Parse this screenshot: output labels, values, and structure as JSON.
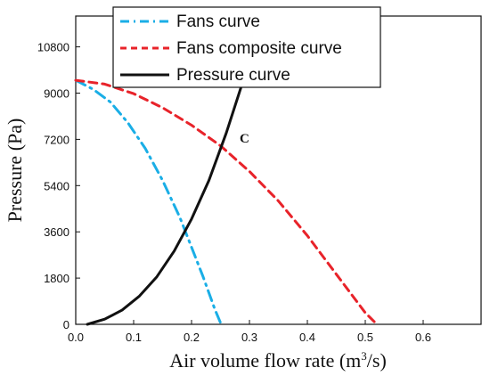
{
  "chart_data": {
    "type": "line",
    "title": "",
    "xlabel": "Air volume flow rate (m",
    "xlabel_sup": "3",
    "xlabel_tail": "/s)",
    "ylabel": "Pressure (Pa)",
    "xlim": [
      0,
      0.7
    ],
    "ylim": [
      0,
      12000
    ],
    "x_ticks": [
      0.0,
      0.1,
      0.2,
      0.3,
      0.4,
      0.5,
      0.6
    ],
    "x_tick_labels": [
      "0.0",
      "0.1",
      "0.2",
      "0.3",
      "0.4",
      "0.5",
      "0.6"
    ],
    "y_ticks": [
      0,
      1800,
      3600,
      5400,
      7200,
      9000,
      10800
    ],
    "y_tick_labels": [
      "0",
      "1800",
      "3600",
      "5400",
      "7200",
      "9000",
      "10800"
    ],
    "grid": false,
    "legend_position": "top-center",
    "series": [
      {
        "name": "Fans curve",
        "color": "#1aaee6",
        "style": "dashdot",
        "x": [
          0.0,
          0.03,
          0.06,
          0.09,
          0.12,
          0.15,
          0.18,
          0.2,
          0.22,
          0.24,
          0.251
        ],
        "y": [
          9500,
          9150,
          8650,
          7850,
          6850,
          5600,
          4150,
          3000,
          1850,
          600,
          0
        ]
      },
      {
        "name": "Fans composite curve",
        "color": "#e8232a",
        "style": "dashed",
        "x": [
          0.0,
          0.05,
          0.1,
          0.15,
          0.2,
          0.25,
          0.3,
          0.35,
          0.4,
          0.45,
          0.5,
          0.52
        ],
        "y": [
          9500,
          9350,
          8980,
          8430,
          7750,
          6950,
          5950,
          4800,
          3450,
          1950,
          450,
          0
        ]
      },
      {
        "name": "Pressure curve",
        "color": "#111111",
        "style": "solid",
        "x": [
          0.02,
          0.05,
          0.08,
          0.11,
          0.14,
          0.17,
          0.2,
          0.23,
          0.26,
          0.285
        ],
        "y": [
          0,
          200,
          550,
          1100,
          1850,
          2850,
          4100,
          5600,
          7450,
          9200
        ]
      }
    ],
    "annotations": [
      {
        "text": "C",
        "x": 0.277,
        "y": 7150
      }
    ]
  }
}
